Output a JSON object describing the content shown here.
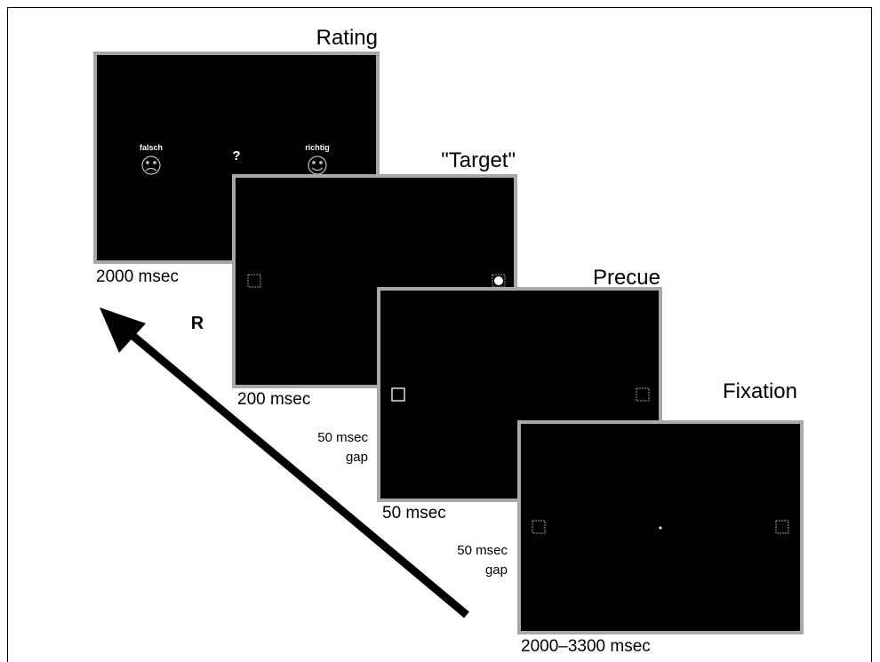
{
  "screens": [
    {
      "title": "Rating",
      "duration": "2000 msec",
      "labels": {
        "left": "falsch",
        "center": "?",
        "right": "richtig"
      }
    },
    {
      "title": "\"Target\"",
      "duration": "200 msec"
    },
    {
      "title": "Precue",
      "duration": "50 msec"
    },
    {
      "title": "Fixation",
      "duration": "2000–3300 msec"
    }
  ],
  "gaps": [
    {
      "lines": [
        "50 msec",
        "gap"
      ]
    },
    {
      "lines": [
        "50 msec",
        "gap"
      ]
    }
  ],
  "response": "R"
}
